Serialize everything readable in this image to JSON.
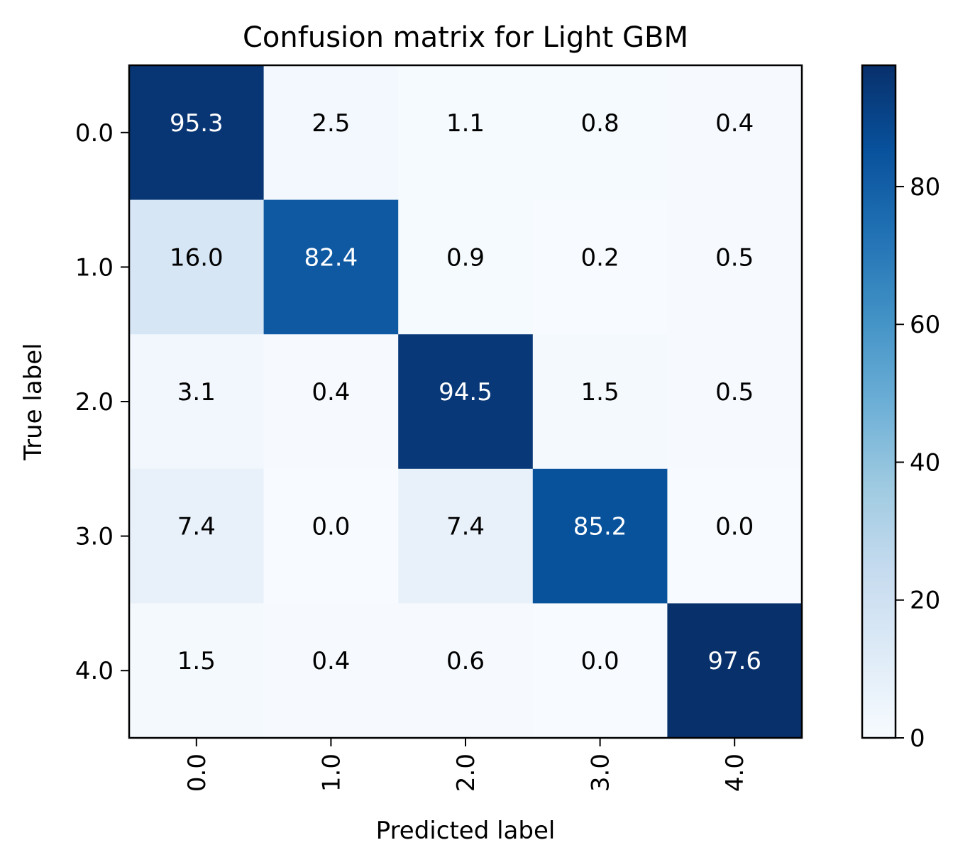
{
  "chart_data": {
    "type": "heatmap",
    "title": "Confusion matrix for Light GBM",
    "xlabel": "Predicted label",
    "ylabel": "True label",
    "x_categories": [
      "0.0",
      "1.0",
      "2.0",
      "3.0",
      "4.0"
    ],
    "y_categories": [
      "0.0",
      "1.0",
      "2.0",
      "3.0",
      "4.0"
    ],
    "values": [
      [
        95.3,
        2.5,
        1.1,
        0.8,
        0.4
      ],
      [
        16.0,
        82.4,
        0.9,
        0.2,
        0.5
      ],
      [
        3.1,
        0.4,
        94.5,
        1.5,
        0.5
      ],
      [
        7.4,
        0.0,
        7.4,
        85.2,
        0.0
      ],
      [
        1.5,
        0.4,
        0.6,
        0.0,
        97.6
      ]
    ],
    "cell_labels": [
      [
        "95.3",
        "2.5",
        "1.1",
        "0.8",
        "0.4"
      ],
      [
        "16.0",
        "82.4",
        "0.9",
        "0.2",
        "0.5"
      ],
      [
        "3.1",
        "0.4",
        "94.5",
        "1.5",
        "0.5"
      ],
      [
        "7.4",
        "0.0",
        "7.4",
        "85.2",
        "0.0"
      ],
      [
        "1.5",
        "0.4",
        "0.6",
        "0.0",
        "97.6"
      ]
    ],
    "colorbar": {
      "colormap": "Blues",
      "range": [
        0,
        97.6
      ],
      "ticks": [
        "0",
        "20",
        "40",
        "60",
        "80"
      ],
      "tick_values": [
        0,
        20,
        40,
        60,
        80
      ]
    },
    "colormap_stops": [
      "#f7fbff",
      "#deebf7",
      "#c6dbef",
      "#9ecae1",
      "#6baed6",
      "#4292c6",
      "#2171b5",
      "#08519c",
      "#08306b"
    ],
    "text_color_dark": "#000000",
    "text_color_light": "#ffffff",
    "x_tick_rotation": "vertical"
  }
}
